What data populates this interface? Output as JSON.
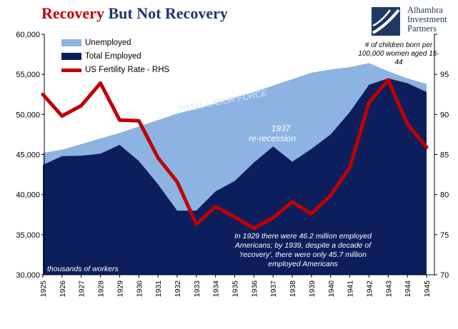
{
  "header": {
    "title_red": "Recovery",
    "title_blue": " But Not Recovery"
  },
  "logo": {
    "line1": "Alhambra",
    "line2": "Investment",
    "line3": "Partners",
    "icon": "alhambra-logo-icon"
  },
  "legend": {
    "unemployed": "Unemployed",
    "employed": "Total Employed",
    "fertility": "US Fertility Rate - RHS"
  },
  "notes": {
    "rhs_unit": "# of children born per 100,000 women aged 15-44",
    "labor_force": "TOTAL LABOR FORCE",
    "recession_line1": "1937",
    "recession_line2": "re-recession",
    "units": "thousands of workers",
    "caption_line1": "In 1929 there were 46.2 million employed",
    "caption_line2": "Americans; by 1939, despite a decade of",
    "caption_line3": "'recovery', there were only 45.7 million",
    "caption_line4": "employed Americans"
  },
  "colors": {
    "unemployed": "#8db3e2",
    "employed": "#0c1f5c",
    "fertility": "#c00000",
    "labor_label": "#dce6f2",
    "title_red": "#c00000",
    "title_blue": "#1f3864"
  },
  "chart_data": {
    "type": "area",
    "categories": [
      "1925",
      "1926",
      "1927",
      "1928",
      "1929",
      "1930",
      "1931",
      "1932",
      "1933",
      "1934",
      "1935",
      "1936",
      "1937",
      "1938",
      "1939",
      "1940",
      "1941",
      "1942",
      "1943",
      "1944",
      "1945"
    ],
    "series": [
      {
        "name": "Total Employed",
        "type": "area",
        "axis": "left",
        "values": [
          43700,
          44800,
          44850,
          45100,
          46200,
          44200,
          41300,
          38000,
          38000,
          40400,
          41700,
          44000,
          46000,
          44100,
          45700,
          47500,
          50300,
          53700,
          54500,
          53900,
          52800
        ]
      },
      {
        "name": "Unemployed",
        "type": "area",
        "axis": "left",
        "stacked_total": true,
        "values": [
          45200,
          45600,
          46300,
          47000,
          47700,
          48500,
          49300,
          50100,
          50700,
          51400,
          52100,
          52800,
          53600,
          54400,
          55200,
          55600,
          55900,
          56400,
          55400,
          54500,
          53800
        ]
      },
      {
        "name": "US Fertility Rate - RHS",
        "type": "line",
        "axis": "right",
        "values": [
          92.5,
          89.8,
          91.1,
          93.9,
          89.3,
          89.2,
          84.6,
          81.6,
          76.3,
          78.5,
          77.2,
          75.8,
          77.1,
          79.1,
          77.6,
          79.9,
          83.4,
          91.5,
          94.3,
          88.8,
          85.9
        ]
      }
    ],
    "y_left": {
      "min": 30000,
      "max": 60000,
      "step": 5000,
      "ticks": [
        "30,000",
        "35,000",
        "40,000",
        "45,000",
        "50,000",
        "55,000",
        "60,000"
      ]
    },
    "y_right": {
      "min": 70,
      "max": 100,
      "step": 5,
      "ticks": [
        "70",
        "75",
        "80",
        "85",
        "90",
        "95",
        ""
      ]
    },
    "grid": false,
    "legend_position": "top-left"
  }
}
